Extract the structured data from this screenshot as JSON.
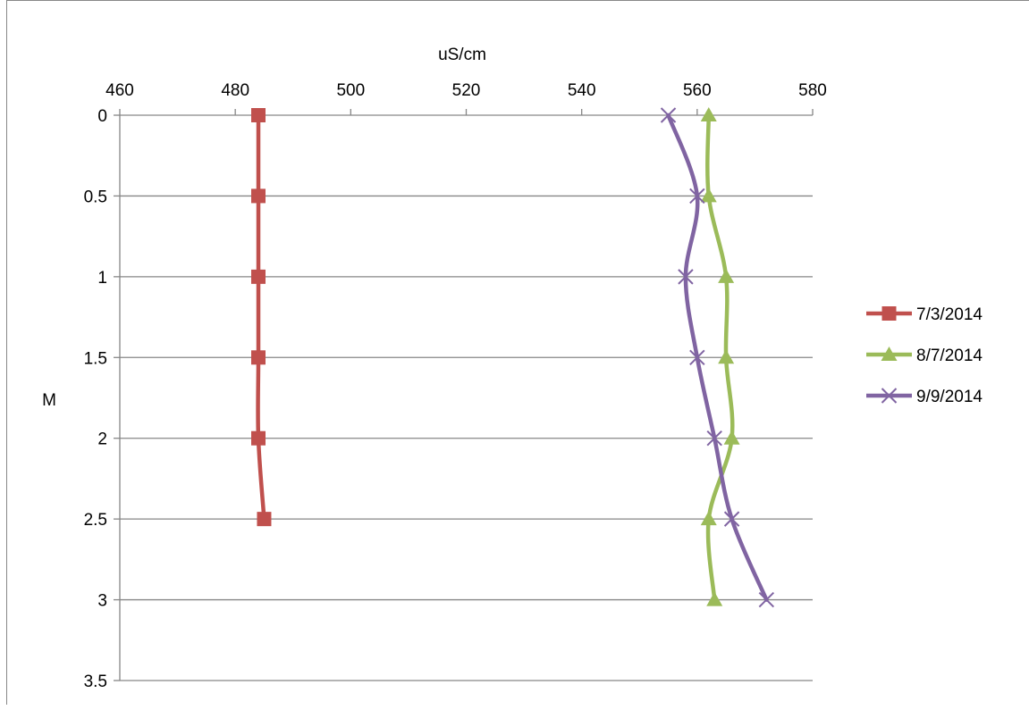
{
  "chart_data": {
    "type": "line",
    "xlabel": "uS/cm",
    "ylabel": "M",
    "xlim": [
      460,
      580
    ],
    "ylim": [
      0,
      3.5
    ],
    "y_reversed": true,
    "x_axis_position": "top",
    "x_ticks": [
      "460",
      "480",
      "500",
      "520",
      "540",
      "560",
      "580"
    ],
    "y_ticks": [
      "0",
      "0.5",
      "1",
      "1.5",
      "2",
      "2.5",
      "3",
      "3.5"
    ],
    "grid": "horizontal",
    "legend_position": "right",
    "series": [
      {
        "name": "7/3/2014",
        "color": "#c0504d",
        "marker": "square",
        "points": [
          [
            484,
            0
          ],
          [
            484,
            0.5
          ],
          [
            484,
            1
          ],
          [
            484,
            1.5
          ],
          [
            484,
            2
          ],
          [
            485,
            2.5
          ]
        ]
      },
      {
        "name": "8/7/2014",
        "color": "#9bbb59",
        "marker": "triangle",
        "points": [
          [
            562,
            0
          ],
          [
            562,
            0.5
          ],
          [
            565,
            1
          ],
          [
            565,
            1.5
          ],
          [
            566,
            2
          ],
          [
            562,
            2.5
          ],
          [
            563,
            3
          ]
        ]
      },
      {
        "name": "9/9/2014",
        "color": "#8064a2",
        "marker": "x",
        "points": [
          [
            555,
            0
          ],
          [
            560,
            0.5
          ],
          [
            558,
            1
          ],
          [
            560,
            1.5
          ],
          [
            563,
            2
          ],
          [
            566,
            2.5
          ],
          [
            572,
            3
          ]
        ]
      }
    ]
  }
}
